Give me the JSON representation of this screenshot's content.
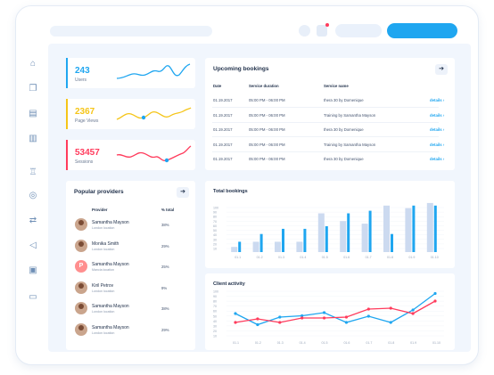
{
  "stats": [
    {
      "value": "243",
      "label": "Users",
      "color": "#1fa6f0"
    },
    {
      "value": "2367",
      "label": "Page Views",
      "color": "#f5c518"
    },
    {
      "value": "53457",
      "label": "Sessions",
      "color": "#ff3b5c"
    }
  ],
  "sidebar_icons": [
    "bank-icon",
    "documents-icon",
    "chart-icon",
    "building-icon",
    "tooth-icon",
    "piggy-bank-icon",
    "shuffle-icon",
    "megaphone-icon",
    "video-icon",
    "chat-icon"
  ],
  "bookings": {
    "title": "Upcoming bookings",
    "columns": [
      "Date",
      "Service duration",
      "Service name"
    ],
    "rows": [
      {
        "date": "01.19.2017",
        "duration": "05:00 PM - 06:00 PM",
        "service": "thera 30 by Domenique",
        "action": "details"
      },
      {
        "date": "01.19.2017",
        "duration": "05:00 PM - 06:00 PM",
        "service": "Training by Samantha Mayson",
        "action": "details"
      },
      {
        "date": "01.19.2017",
        "duration": "05:00 PM - 06:00 PM",
        "service": "thera 30 by Domenique",
        "action": "details"
      },
      {
        "date": "01.19.2017",
        "duration": "05:00 PM - 06:00 PM",
        "service": "Training by Samantha Mayson",
        "action": "details"
      },
      {
        "date": "01.19.2017",
        "duration": "05:00 PM - 06:00 PM",
        "service": "thera 30 by Domenique",
        "action": "details"
      }
    ]
  },
  "providers": {
    "title": "Popular providers",
    "columns": [
      "Provider",
      "% total"
    ],
    "rows": [
      {
        "name": "Samantha Mayson",
        "location": "London location",
        "pct": "38%",
        "initial": ""
      },
      {
        "name": "Monika Smith",
        "location": "London location",
        "pct": "29%",
        "initial": ""
      },
      {
        "name": "Samantha Mayson",
        "location": "Mancia location",
        "pct": "25%",
        "initial": "P"
      },
      {
        "name": "Kiril Petrov",
        "location": "London location",
        "pct": "9%",
        "initial": ""
      },
      {
        "name": "Samantha Mayson",
        "location": "London location",
        "pct": "38%",
        "initial": ""
      },
      {
        "name": "Samantha Mayson",
        "location": "London location",
        "pct": "29%",
        "initial": ""
      }
    ]
  },
  "chart_data": [
    {
      "type": "bar",
      "title": "Total bookings",
      "categories": [
        "01.1",
        "01.2",
        "01.3",
        "01.4",
        "01.5",
        "01.6",
        "01.7",
        "01.8",
        "01.9",
        "01.10"
      ],
      "ylim": [
        0,
        100
      ],
      "yticks": [
        "100",
        "90",
        "80",
        "70",
        "60",
        "50",
        "40",
        "30",
        "20",
        "10"
      ],
      "series": [
        {
          "values": [
            10,
            20,
            20,
            20,
            75,
            60,
            55,
            90,
            85,
            95
          ]
        },
        {
          "values": [
            20,
            35,
            45,
            45,
            50,
            75,
            80,
            35,
            90,
            90
          ]
        }
      ],
      "colors": [
        "#ccdaf0",
        "#1fa6f0"
      ]
    },
    {
      "type": "line",
      "title": "Client activity",
      "categories": [
        "01.1",
        "01.2",
        "01.3",
        "01.4",
        "01.5",
        "01.6",
        "01.7",
        "01.8",
        "01.9",
        "01.10"
      ],
      "ylim": [
        0,
        100
      ],
      "yticks": [
        "100",
        "90",
        "80",
        "70",
        "60",
        "50",
        "40",
        "30",
        "20",
        "10"
      ],
      "series": [
        {
          "values": [
            50,
            25,
            42,
            45,
            52,
            30,
            44,
            30,
            58,
            95
          ],
          "color": "#1fa6f0"
        },
        {
          "values": [
            30,
            38,
            30,
            40,
            40,
            42,
            60,
            62,
            50,
            78
          ],
          "color": "#ff3b5c"
        }
      ]
    }
  ]
}
